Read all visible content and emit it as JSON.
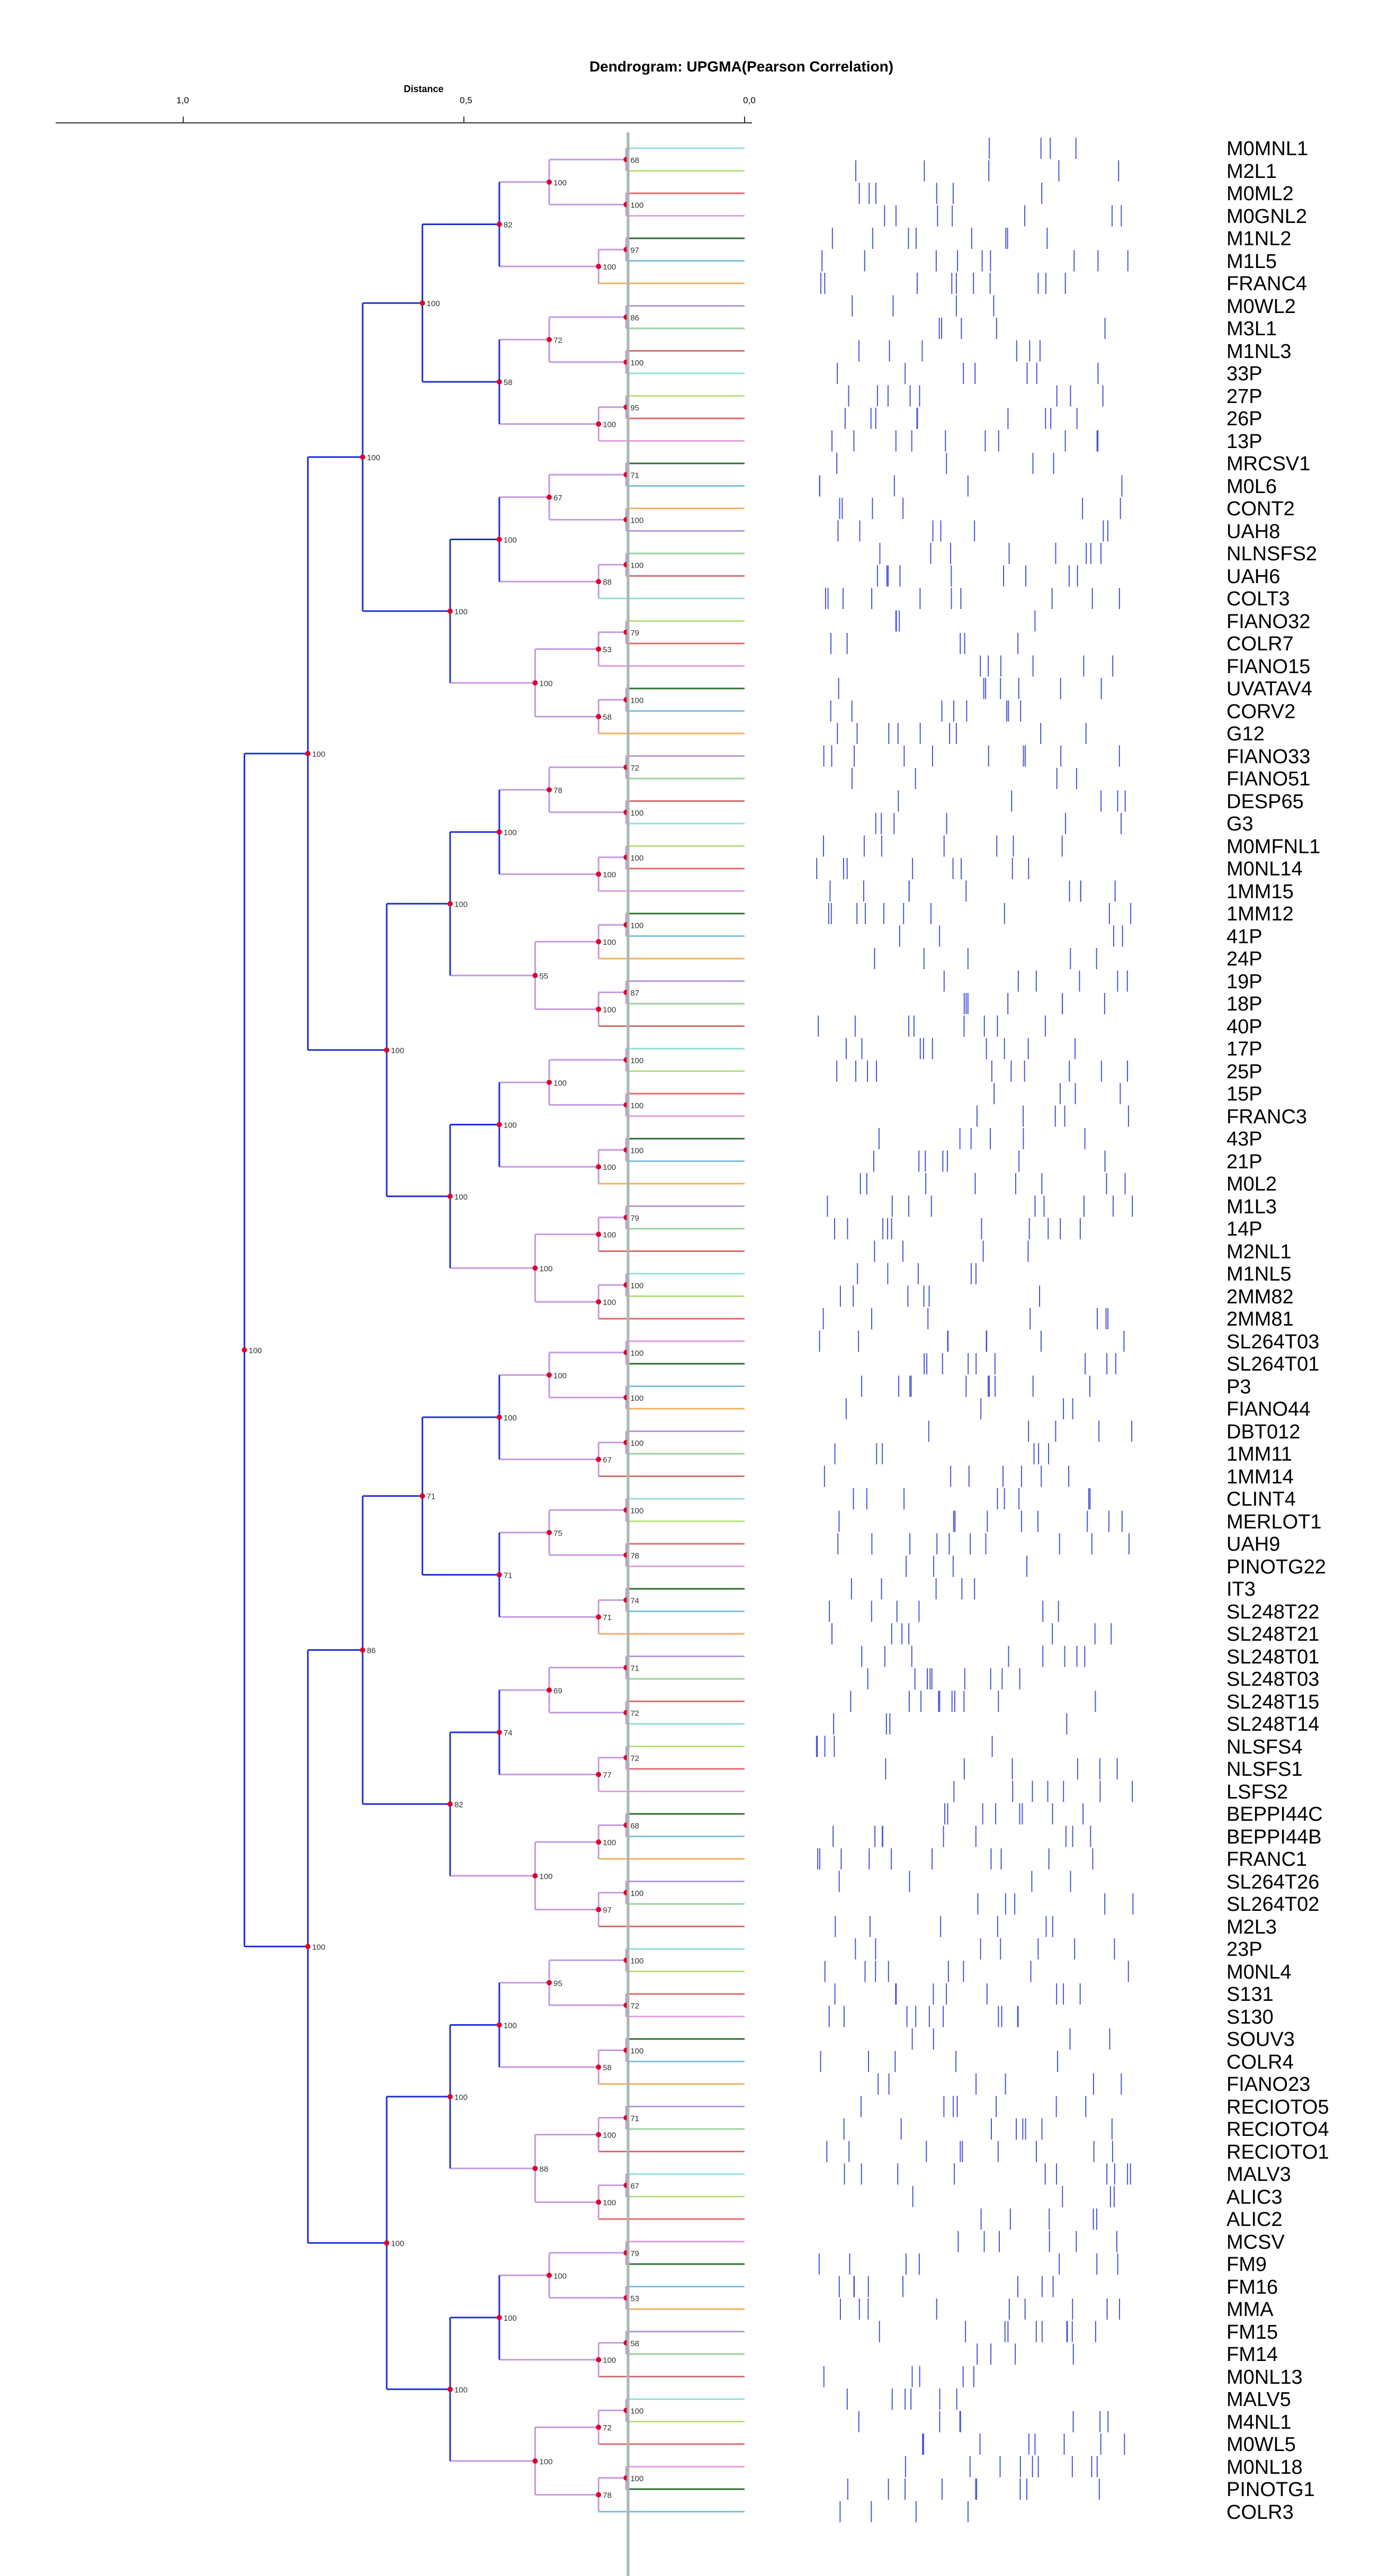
{
  "title": "Dendrogram: UPGMA(Pearson Correlation)",
  "axis": {
    "label": "Distance",
    "ticks": [
      "1,0",
      "0,5",
      "0,0"
    ]
  },
  "leaves": [
    "M0MNL1",
    "M2L1",
    "M0ML2",
    "M0GNL2",
    "M1NL2",
    "M1L5",
    "FRANC4",
    "M0WL2",
    "M3L1",
    "M1NL3",
    "33P",
    "27P",
    "26P",
    "13P",
    "MRCSV1",
    "M0L6",
    "CONT2",
    "UAH8",
    "NLNSFS2",
    "UAH6",
    "COLT3",
    "FIANO32",
    "COLR7",
    "FIANO15",
    "UVATAV4",
    "CORV2",
    "G12",
    "FIANO33",
    "FIANO51",
    "DESP65",
    "G3",
    "M0MFNL1",
    "M0NL14",
    "1MM15",
    "1MM12",
    "41P",
    "24P",
    "19P",
    "18P",
    "40P",
    "17P",
    "25P",
    "15P",
    "FRANC3",
    "43P",
    "21P",
    "M0L2",
    "M1L3",
    "14P",
    "M2NL1",
    "M1NL5",
    "2MM82",
    "2MM81",
    "SL264T03",
    "SL264T01",
    "P3",
    "FIANO44",
    "DBT012",
    "1MM11",
    "1MM14",
    "CLINT4",
    "MERLOT1",
    "UAH9",
    "PINOTG22",
    "IT3",
    "SL248T22",
    "SL248T21",
    "SL248T01",
    "SL248T03",
    "SL248T15",
    "SL248T14",
    "NLSFS4",
    "NLSFS1",
    "LSFS2",
    "BEPPI44C",
    "BEPPI44B",
    "FRANC1",
    "SL264T26",
    "SL264T02",
    "M2L3",
    "23P",
    "M0NL4",
    "S131",
    "S130",
    "SOUV3",
    "COLR4",
    "FIANO23",
    "RECIOTO5",
    "RECIOTO4",
    "RECIOTO1",
    "MALV3",
    "ALIC3",
    "ALIC2",
    "MCSV",
    "FM9",
    "FM16",
    "MMA",
    "FM15",
    "FM14",
    "M0NL13",
    "MALV5",
    "M4NL1",
    "M0WL5",
    "M0NL18",
    "PINOTG1",
    "COLR3"
  ],
  "bootstrap_labels": [
    "68",
    "100",
    "100",
    "97",
    "100",
    "82",
    "86",
    "100",
    "72",
    "95",
    "100",
    "58",
    "100",
    "71",
    "100",
    "67",
    "100",
    "88",
    "100",
    "79",
    "53",
    "100",
    "58",
    "100",
    "100",
    "100",
    "72",
    "100",
    "78",
    "100",
    "100",
    "100",
    "100",
    "100",
    "87",
    "100",
    "55",
    "100",
    "100",
    "100",
    "100",
    "100",
    "100",
    "100",
    "79",
    "100",
    "100",
    "100",
    "100",
    "100",
    "100",
    "100",
    "100",
    "100",
    "100",
    "100",
    "67",
    "100",
    "100",
    "78",
    "75",
    "74",
    "71",
    "71",
    "71",
    "71",
    "72",
    "69",
    "72",
    "77",
    "74"
  ],
  "colors": {
    "clade": "#1d2fd6",
    "node": "#e0002a",
    "cutline": "#a8b8b0",
    "band": "#4a55d8"
  }
}
